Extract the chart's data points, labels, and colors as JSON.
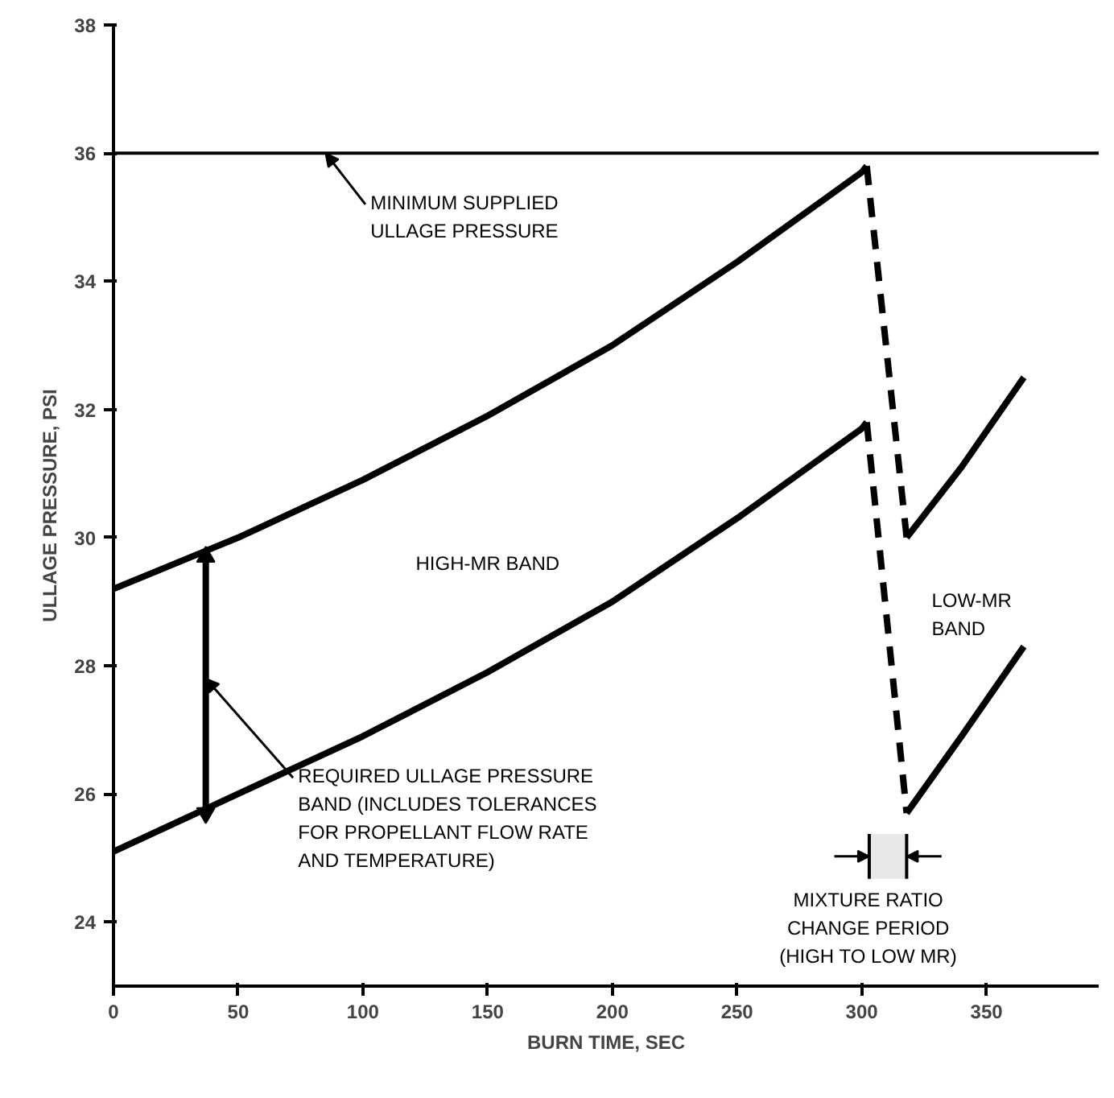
{
  "chart_data": {
    "type": "line",
    "xlabel": "BURN TIME, SEC",
    "ylabel": "ULLAGE PRESSURE, PSI",
    "xlim": [
      0,
      395
    ],
    "ylim": [
      23,
      38
    ],
    "xticks": [
      0,
      50,
      100,
      150,
      200,
      250,
      300,
      350
    ],
    "yticks": [
      24,
      26,
      28,
      30,
      32,
      34,
      36,
      38
    ],
    "grid": false,
    "marker": "none",
    "line_style": "solid",
    "series": [
      {
        "color": "#000000",
        "x": [
          0,
          50,
          100,
          150,
          200,
          250,
          300,
          302
        ],
        "values": [
          29.2,
          30.0,
          30.9,
          31.9,
          33.0,
          34.3,
          35.7,
          35.8
        ]
      },
      {
        "color": "#000000",
        "x": [
          0,
          50,
          100,
          150,
          200,
          250,
          300,
          302
        ],
        "values": [
          25.1,
          26.0,
          26.9,
          27.9,
          29.0,
          30.3,
          31.7,
          31.8
        ]
      },
      {
        "color": "#000000",
        "x": [
          302,
          318
        ],
        "values": [
          35.8,
          30.0
        ],
        "line_style": "dashed"
      },
      {
        "color": "#000000",
        "x": [
          302,
          318
        ],
        "values": [
          31.8,
          25.7
        ],
        "line_style": "dashed"
      },
      {
        "color": "#000000",
        "x": [
          318,
          340,
          365
        ],
        "values": [
          30.0,
          31.1,
          32.5
        ]
      },
      {
        "color": "#000000",
        "x": [
          318,
          340,
          365
        ],
        "values": [
          25.7,
          26.9,
          28.3
        ]
      },
      {
        "color": "#000000",
        "x": [
          37,
          37
        ],
        "values": [
          25.7,
          29.7
        ],
        "marker": "triangle"
      }
    ],
    "ref_lines": [
      {
        "axis": "y",
        "value": 36,
        "color": "#000000"
      }
    ],
    "bands": [
      {
        "axis": "x",
        "from": 303,
        "to": 318,
        "label": "MIXTURE RATIO\nCHANGE PERIOD\n(HIGH TO LOW MR)",
        "color": "#e8e8e8"
      }
    ],
    "annotations": [
      {
        "text": "MINIMUM SUPPLIED\nULLAGE PRESSURE",
        "x": 85,
        "y": 36
      },
      "HIGH-MR BAND",
      "LOW-MR\nBAND",
      {
        "text": "REQUIRED ULLAGE PRESSURE\nBAND (INCLUDES TOLERANCES\nFOR PROPELLANT FLOW RATE\nAND TEMPERATURE)",
        "x": 37,
        "y": 27.8
      }
    ]
  }
}
